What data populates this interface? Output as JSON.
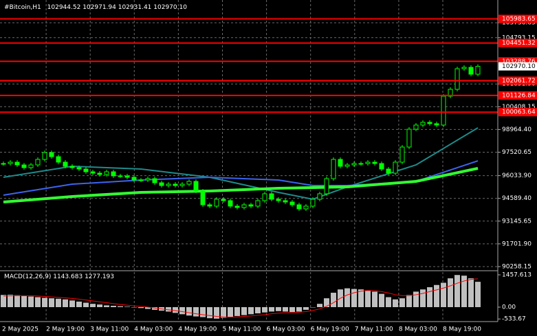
{
  "header": {
    "symbol": "#Bitcoin,H1",
    "ohlc": [
      "102944.52",
      "102971.94",
      "102931.41",
      "102970.10"
    ]
  },
  "chart_data": [
    {
      "type": "candlestick",
      "color": "#00ff00",
      "values": [
        96801,
        96888,
        96714,
        96539,
        96714,
        97063,
        97499,
        97237,
        96888,
        96627,
        96539,
        96452,
        96278,
        96190,
        96103,
        96278,
        96016,
        96016,
        95929,
        95754,
        95754,
        95841,
        95580,
        95405,
        95492,
        95405,
        95492,
        95667,
        95056,
        94184,
        94097,
        94533,
        94446,
        94097,
        94009,
        94184,
        94097,
        94446,
        94882,
        94533,
        94446,
        94358,
        94184,
        93922,
        94097,
        94533,
        94882,
        95841,
        97063,
        96627,
        96714,
        96801,
        96801,
        96888,
        96801,
        96452,
        96190,
        96888,
        97848,
        98982,
        99244,
        99418,
        99331,
        99244,
        101076,
        101512,
        102821,
        102908,
        102472,
        102970.1
      ],
      "ylim": [
        90040,
        107183
      ],
      "yticks": [
        {
          "value": 90258.15,
          "label": "90258.15"
        },
        {
          "value": 91701.9,
          "label": "91701.90"
        },
        93145.65,
        {
          "value": 94589.4,
          "label": "94589.40"
        },
        {
          "value": 96033.9,
          "label": "96033.90"
        },
        97520.65,
        {
          "value": 98964.4,
          "label": "98964.40"
        },
        100408.15,
        {
          "value": 101851.9,
          "label": "101851.90"
        },
        104793.15,
        105736.65
      ],
      "levels": [
        105983.65,
        104451.32,
        103288.76,
        102061.72,
        101126.84,
        100063.64
      ],
      "level_color": "#ff0000",
      "current_price": {
        "value": 102970.1,
        "label": "102970.10"
      },
      "moving_averages": [
        {
          "color": "#1e8c8c",
          "x": [
            0,
            10,
            20,
            30,
            40,
            45,
            50,
            60,
            69
          ],
          "values": [
            95929,
            96627,
            96452,
            95929,
            94969,
            94533,
            95318,
            96714,
            99069
          ]
        },
        {
          "color": "#3c64f0",
          "x": [
            0,
            10,
            20,
            30,
            40,
            45,
            50,
            60,
            69
          ],
          "values": [
            94795,
            95492,
            95754,
            95929,
            95754,
            95405,
            95405,
            95667,
            96975
          ]
        },
        {
          "color": "#32ff32",
          "x": [
            0,
            10,
            20,
            30,
            40,
            50,
            60,
            69
          ],
          "values": [
            94358,
            94707,
            94969,
            95056,
            95231,
            95318,
            95667,
            96496
          ]
        }
      ],
      "time_labels": [
        "2 May 2025",
        "2 May 19:00",
        "3 May 11:00",
        "4 May 03:00",
        "4 May 19:00",
        "5 May 11:00",
        "6 May 03:00",
        "6 May 19:00",
        "7 May 11:00",
        "8 May 03:00",
        "8 May 19:00"
      ],
      "grid": true
    },
    {
      "type": "macd",
      "title": "MACD(12,26,9)",
      "series": [
        {
          "name": "MACD",
          "color": "#c0c0c0",
          "values": [
            550,
            560,
            540,
            500,
            480,
            450,
            420,
            400,
            380,
            350,
            300,
            250,
            200,
            150,
            120,
            80,
            60,
            40,
            20,
            0,
            -40,
            -80,
            -120,
            -160,
            -200,
            -260,
            -320,
            -380,
            -420,
            -450,
            -500,
            -520,
            -480,
            -440,
            -400,
            -360,
            -320,
            -280,
            -240,
            -200,
            -180,
            -200,
            -220,
            -200,
            -120,
            0,
            150,
            400,
            650,
            800,
            850,
            820,
            800,
            760,
            700,
            600,
            450,
            350,
            400,
            550,
            700,
            800,
            900,
            1000,
            1100,
            1300,
            1450,
            1420,
            1300,
            1143.683
          ]
        },
        {
          "name": "Signal",
          "color": "#ff0000",
          "values": [
            500,
            510,
            520,
            520,
            510,
            500,
            480,
            460,
            440,
            420,
            390,
            360,
            320,
            280,
            240,
            200,
            160,
            120,
            90,
            60,
            30,
            0,
            -40,
            -80,
            -120,
            -160,
            -200,
            -250,
            -300,
            -340,
            -380,
            -420,
            -440,
            -450,
            -440,
            -420,
            -400,
            -370,
            -340,
            -300,
            -270,
            -250,
            -240,
            -230,
            -200,
            -150,
            -80,
            40,
            200,
            400,
            550,
            650,
            720,
            750,
            740,
            700,
            640,
            560,
            520,
            520,
            560,
            620,
            700,
            780,
            860,
            960,
            1080,
            1180,
            1250,
            1277.193
          ]
        }
      ],
      "ylim": [
        -651,
        1643
      ],
      "yticks": [
        -533.67,
        {
          "value": 0,
          "label": "0.00"
        },
        1457.613
      ]
    }
  ]
}
